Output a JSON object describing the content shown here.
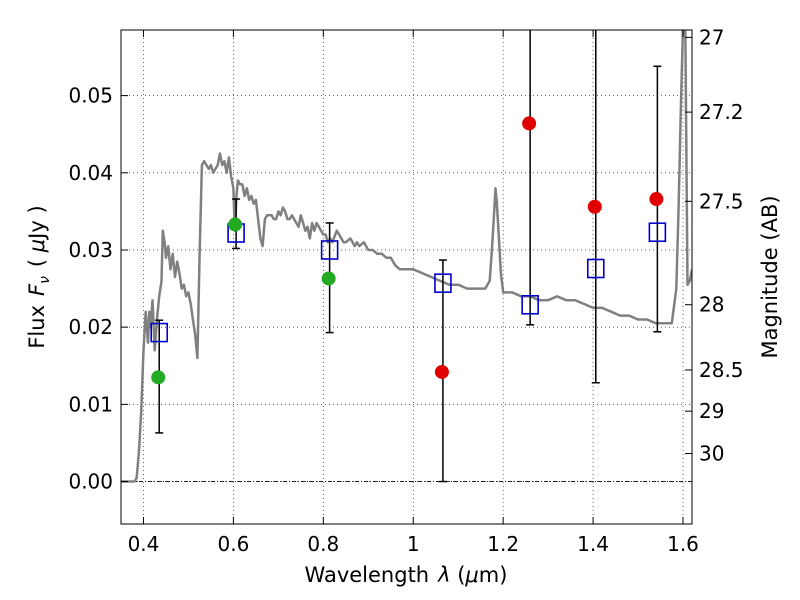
{
  "chart_data": {
    "type": "scatter",
    "xlabel_main": "Wavelength",
    "xlabel_lambda": "λ",
    "xlabel_unit_open": " (",
    "xlabel_mu": "μ",
    "xlabel_unit_close": "m)",
    "ylabel_main": "Flux",
    "ylabel_sym": "F",
    "ylabel_sub": "ν",
    "ylabel_unit_open": "( ",
    "ylabel_mu": "μ",
    "ylabel_unit_close": "Jy )",
    "y2label": "Magnitude (AB)",
    "xlim": [
      0.35,
      1.62
    ],
    "ylim": [
      -0.0055,
      0.0585
    ],
    "xticks": [
      0.4,
      0.6,
      0.8,
      1.0,
      1.2,
      1.4,
      1.6
    ],
    "xtick_labels": [
      "0.4",
      "0.6",
      "0.8",
      "1",
      "1.2",
      "1.4",
      "1.6"
    ],
    "yticks": [
      0.0,
      0.01,
      0.02,
      0.03,
      0.04,
      0.05
    ],
    "ytick_labels": [
      "0.00",
      "0.01",
      "0.02",
      "0.03",
      "0.04",
      "0.05"
    ],
    "mag_ticks": [
      27,
      27.2,
      27.5,
      28,
      28.5,
      29,
      30
    ],
    "mag_tick_labels": [
      "27",
      "27.2",
      "27.5",
      "28",
      "28.5",
      "29",
      "30"
    ],
    "grid": true,
    "colors": {
      "model": "#808080",
      "green": "#22aa22",
      "red": "#e00000",
      "model_points": "#0000cc",
      "errorbars": "#000000"
    },
    "model_spectrum": [
      [
        0.35,
        0
      ],
      [
        0.38,
        0
      ],
      [
        0.385,
        0.0005
      ],
      [
        0.39,
        0.004
      ],
      [
        0.395,
        0.009
      ],
      [
        0.4,
        0.017
      ],
      [
        0.405,
        0.022
      ],
      [
        0.41,
        0.018
      ],
      [
        0.413,
        0.022
      ],
      [
        0.416,
        0.02
      ],
      [
        0.42,
        0.0235
      ],
      [
        0.425,
        0.017
      ],
      [
        0.43,
        0.021
      ],
      [
        0.435,
        0.024
      ],
      [
        0.44,
        0.026
      ],
      [
        0.443,
        0.0325
      ],
      [
        0.447,
        0.031
      ],
      [
        0.45,
        0.029
      ],
      [
        0.455,
        0.0305
      ],
      [
        0.46,
        0.0275
      ],
      [
        0.465,
        0.0295
      ],
      [
        0.47,
        0.0265
      ],
      [
        0.475,
        0.0285
      ],
      [
        0.48,
        0.027
      ],
      [
        0.485,
        0.025
      ],
      [
        0.49,
        0.0255
      ],
      [
        0.495,
        0.024
      ],
      [
        0.5,
        0.0245
      ],
      [
        0.505,
        0.023
      ],
      [
        0.51,
        0.021
      ],
      [
        0.515,
        0.019
      ],
      [
        0.52,
        0.016
      ],
      [
        0.525,
        0.03
      ],
      [
        0.53,
        0.041
      ],
      [
        0.535,
        0.0415
      ],
      [
        0.54,
        0.041
      ],
      [
        0.545,
        0.0405
      ],
      [
        0.55,
        0.041
      ],
      [
        0.555,
        0.04
      ],
      [
        0.56,
        0.0405
      ],
      [
        0.565,
        0.041
      ],
      [
        0.57,
        0.0425
      ],
      [
        0.575,
        0.041
      ],
      [
        0.58,
        0.0415
      ],
      [
        0.585,
        0.04
      ],
      [
        0.59,
        0.042
      ],
      [
        0.595,
        0.0395
      ],
      [
        0.6,
        0.038
      ],
      [
        0.603,
        0.0325
      ],
      [
        0.607,
        0.037
      ],
      [
        0.61,
        0.039
      ],
      [
        0.615,
        0.0385
      ],
      [
        0.62,
        0.0385
      ],
      [
        0.625,
        0.037
      ],
      [
        0.63,
        0.038
      ],
      [
        0.635,
        0.0365
      ],
      [
        0.64,
        0.037
      ],
      [
        0.645,
        0.036
      ],
      [
        0.65,
        0.0365
      ],
      [
        0.655,
        0.034
      ],
      [
        0.66,
        0.0315
      ],
      [
        0.665,
        0.0305
      ],
      [
        0.67,
        0.034
      ],
      [
        0.675,
        0.0345
      ],
      [
        0.68,
        0.0345
      ],
      [
        0.685,
        0.0345
      ],
      [
        0.69,
        0.034
      ],
      [
        0.695,
        0.034
      ],
      [
        0.7,
        0.035
      ],
      [
        0.705,
        0.0345
      ],
      [
        0.71,
        0.0355
      ],
      [
        0.715,
        0.035
      ],
      [
        0.72,
        0.034
      ],
      [
        0.725,
        0.034
      ],
      [
        0.73,
        0.0345
      ],
      [
        0.735,
        0.034
      ],
      [
        0.74,
        0.0335
      ],
      [
        0.745,
        0.033
      ],
      [
        0.75,
        0.0345
      ],
      [
        0.755,
        0.0335
      ],
      [
        0.76,
        0.0325
      ],
      [
        0.765,
        0.033
      ],
      [
        0.77,
        0.0315
      ],
      [
        0.775,
        0.0335
      ],
      [
        0.78,
        0.0325
      ],
      [
        0.785,
        0.0335
      ],
      [
        0.79,
        0.033
      ],
      [
        0.795,
        0.0325
      ],
      [
        0.8,
        0.032
      ],
      [
        0.805,
        0.032
      ],
      [
        0.81,
        0.031
      ],
      [
        0.815,
        0.0315
      ],
      [
        0.82,
        0.031
      ],
      [
        0.83,
        0.0325
      ],
      [
        0.835,
        0.032
      ],
      [
        0.84,
        0.0315
      ],
      [
        0.845,
        0.031
      ],
      [
        0.85,
        0.031
      ],
      [
        0.86,
        0.0315
      ],
      [
        0.87,
        0.0305
      ],
      [
        0.875,
        0.031
      ],
      [
        0.88,
        0.0305
      ],
      [
        0.89,
        0.031
      ],
      [
        0.9,
        0.03
      ],
      [
        0.91,
        0.03
      ],
      [
        0.92,
        0.0295
      ],
      [
        0.93,
        0.0295
      ],
      [
        0.94,
        0.029
      ],
      [
        0.95,
        0.029
      ],
      [
        0.96,
        0.028
      ],
      [
        0.97,
        0.0275
      ],
      [
        0.98,
        0.0275
      ],
      [
        0.99,
        0.0275
      ],
      [
        1.0,
        0.0275
      ],
      [
        1.02,
        0.027
      ],
      [
        1.04,
        0.0265
      ],
      [
        1.06,
        0.026
      ],
      [
        1.08,
        0.0255
      ],
      [
        1.1,
        0.0255
      ],
      [
        1.12,
        0.025
      ],
      [
        1.14,
        0.025
      ],
      [
        1.16,
        0.025
      ],
      [
        1.17,
        0.026
      ],
      [
        1.175,
        0.03
      ],
      [
        1.18,
        0.035
      ],
      [
        1.183,
        0.038
      ],
      [
        1.186,
        0.036
      ],
      [
        1.19,
        0.032
      ],
      [
        1.195,
        0.027
      ],
      [
        1.2,
        0.0245
      ],
      [
        1.22,
        0.0245
      ],
      [
        1.24,
        0.024
      ],
      [
        1.26,
        0.024
      ],
      [
        1.28,
        0.0235
      ],
      [
        1.3,
        0.0235
      ],
      [
        1.32,
        0.024
      ],
      [
        1.34,
        0.0235
      ],
      [
        1.36,
        0.0235
      ],
      [
        1.38,
        0.023
      ],
      [
        1.4,
        0.0225
      ],
      [
        1.42,
        0.0225
      ],
      [
        1.44,
        0.022
      ],
      [
        1.46,
        0.0215
      ],
      [
        1.48,
        0.0215
      ],
      [
        1.5,
        0.021
      ],
      [
        1.52,
        0.021
      ],
      [
        1.54,
        0.0205
      ],
      [
        1.56,
        0.0205
      ],
      [
        1.575,
        0.0205
      ],
      [
        1.585,
        0.025
      ],
      [
        1.59,
        0.035
      ],
      [
        1.595,
        0.048
      ],
      [
        1.6,
        0.059
      ],
      [
        1.605,
        0.059
      ],
      [
        1.61,
        0.0255
      ],
      [
        1.615,
        0.026
      ],
      [
        1.62,
        0.0275
      ]
    ],
    "model_points": [
      {
        "x": 0.435,
        "y": 0.0193
      },
      {
        "x": 0.606,
        "y": 0.0322
      },
      {
        "x": 0.814,
        "y": 0.03
      },
      {
        "x": 1.066,
        "y": 0.0257
      },
      {
        "x": 1.26,
        "y": 0.0229
      },
      {
        "x": 1.406,
        "y": 0.0276
      },
      {
        "x": 1.543,
        "y": 0.0323
      }
    ],
    "observed": [
      {
        "x": 0.435,
        "y": 0.0135,
        "color": "green",
        "err_low": 0.0063,
        "err_high": 0.0209
      },
      {
        "x": 0.606,
        "y": 0.0333,
        "color": "green",
        "err_low": 0.0302,
        "err_high": 0.0366
      },
      {
        "x": 0.814,
        "y": 0.0263,
        "color": "green",
        "err_low": 0.0193,
        "err_high": 0.0335
      },
      {
        "x": 1.066,
        "y": 0.0142,
        "color": "red",
        "err_low": 0.0,
        "err_high": 0.0287
      },
      {
        "x": 1.26,
        "y": 0.0464,
        "color": "red",
        "err_low": 0.0203,
        "err_high": 0.06
      },
      {
        "x": 1.406,
        "y": 0.0356,
        "color": "red",
        "err_low": 0.0128,
        "err_high": 0.06
      },
      {
        "x": 1.543,
        "y": 0.0366,
        "color": "red",
        "err_low": 0.0194,
        "err_high": 0.0538
      }
    ]
  }
}
